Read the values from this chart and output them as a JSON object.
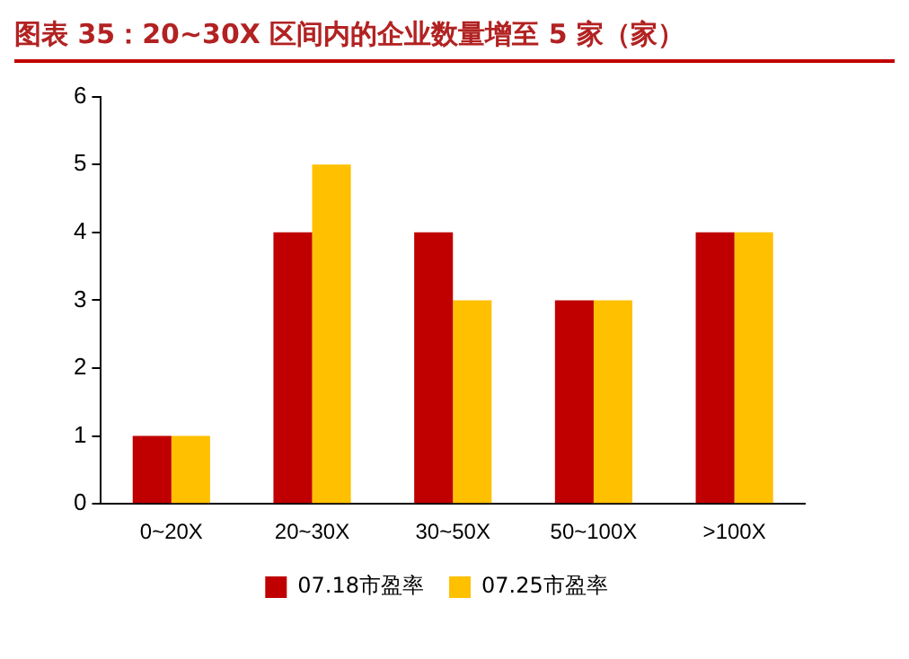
{
  "chart_data": {
    "type": "bar",
    "title": "图表 35：20~30X 区间内的企业数量增至 5 家（家）",
    "categories": [
      "0~20X",
      "20~30X",
      "30~50X",
      "50~100X",
      ">100X"
    ],
    "series": [
      {
        "name": "07.18市盈率",
        "color": "#c00000",
        "values": [
          1,
          4,
          4,
          3,
          4
        ]
      },
      {
        "name": "07.25市盈率",
        "color": "#ffc000",
        "values": [
          1,
          5,
          3,
          3,
          4
        ]
      }
    ],
    "ylim": [
      0,
      6
    ],
    "yticks": [
      0,
      1,
      2,
      3,
      4,
      5,
      6
    ],
    "grid": false,
    "legend": "bottom"
  }
}
